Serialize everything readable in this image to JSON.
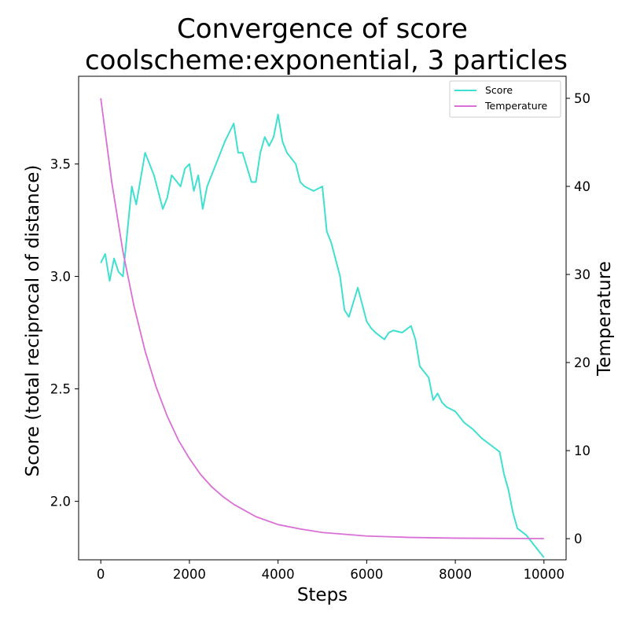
{
  "chart_data": {
    "type": "line",
    "title": "Convergence of score",
    "subtitle": "coolscheme:exponential, 3 particles",
    "xlabel": "Steps",
    "ylabel": "Score (total reciprocal of distance)",
    "y2label": "Temperature",
    "xlim": [
      -500,
      10500
    ],
    "ylim": [
      1.74,
      3.89
    ],
    "y2lim": [
      -2.4,
      52.5
    ],
    "xticks": [
      0,
      2000,
      4000,
      6000,
      8000,
      10000
    ],
    "yticks": [
      "2.0",
      "2.5",
      "3.0",
      "3.5"
    ],
    "y2ticks": [
      0,
      10,
      20,
      30,
      40,
      50
    ],
    "grid": false,
    "legend": "top-right",
    "series": [
      {
        "name": "Score",
        "color": "#40e0d0",
        "axis": "left",
        "x": [
          0,
          100,
          200,
          300,
          400,
          500,
          600,
          700,
          800,
          1000,
          1100,
          1200,
          1400,
          1500,
          1600,
          1800,
          1900,
          2000,
          2100,
          2200,
          2300,
          2400,
          2600,
          2800,
          3000,
          3100,
          3200,
          3400,
          3500,
          3600,
          3700,
          3800,
          3900,
          4000,
          4100,
          4200,
          4400,
          4500,
          4600,
          4800,
          5000,
          5100,
          5200,
          5400,
          5500,
          5600,
          5800,
          6000,
          6100,
          6200,
          6400,
          6500,
          6600,
          6800,
          7000,
          7100,
          7200,
          7400,
          7500,
          7600,
          7700,
          7800,
          8000,
          8200,
          8400,
          8600,
          8800,
          9000,
          9100,
          9200,
          9300,
          9400,
          9600,
          9800,
          10000
        ],
        "values": [
          3.06,
          3.1,
          2.98,
          3.08,
          3.02,
          3.0,
          3.2,
          3.4,
          3.32,
          3.55,
          3.5,
          3.45,
          3.3,
          3.35,
          3.45,
          3.4,
          3.48,
          3.5,
          3.38,
          3.45,
          3.3,
          3.4,
          3.5,
          3.6,
          3.68,
          3.55,
          3.55,
          3.42,
          3.42,
          3.55,
          3.62,
          3.58,
          3.62,
          3.72,
          3.6,
          3.55,
          3.5,
          3.42,
          3.4,
          3.38,
          3.4,
          3.2,
          3.15,
          3.0,
          2.85,
          2.82,
          2.95,
          2.8,
          2.77,
          2.75,
          2.72,
          2.75,
          2.76,
          2.75,
          2.78,
          2.72,
          2.6,
          2.55,
          2.45,
          2.48,
          2.44,
          2.42,
          2.4,
          2.35,
          2.32,
          2.28,
          2.25,
          2.22,
          2.12,
          2.05,
          1.95,
          1.88,
          1.85,
          1.8,
          1.75
        ]
      },
      {
        "name": "Temperature",
        "color": "#da70d6",
        "axis": "right",
        "x": [
          0,
          250,
          500,
          750,
          1000,
          1250,
          1500,
          1750,
          2000,
          2250,
          2500,
          2750,
          3000,
          3500,
          4000,
          4500,
          5000,
          5500,
          6000,
          7000,
          8000,
          9000,
          10000
        ],
        "values": [
          50.0,
          40.4,
          32.6,
          26.4,
          21.3,
          17.2,
          13.9,
          11.2,
          9.1,
          7.3,
          5.9,
          4.8,
          3.9,
          2.5,
          1.6,
          1.1,
          0.7,
          0.5,
          0.3,
          0.14,
          0.06,
          0.03,
          0.01
        ]
      }
    ]
  }
}
